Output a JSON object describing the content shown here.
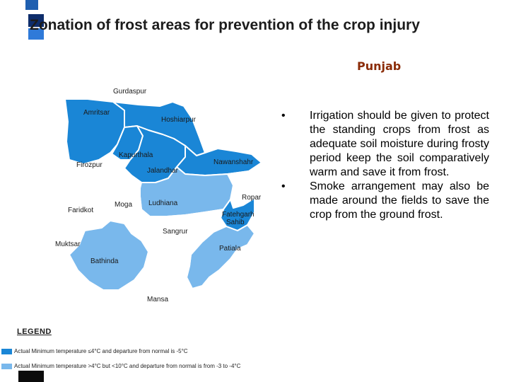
{
  "title": "Zonation of frost areas for prevention of the crop injury",
  "subtitle": "Punjab",
  "bullets": [
    "Irrigation should be given to protect the standing crops from frost as adequate soil moisture during frosty period keep the soil comparatively warm and save it from frost.",
    "Smoke arrangement may also be made around the fields to save the crop from the ground frost."
  ],
  "bullet_marker": "•",
  "colors": {
    "zone_severe": "#1a86d6",
    "zone_moderate": "#79b8ec",
    "zone_normal": "#ffffff",
    "border": "#8c8c8c",
    "subtitle": "#8b2c08"
  },
  "map": {
    "districts": [
      {
        "id": "gurdaspur",
        "label": "Gurdaspur",
        "zone": "normal"
      },
      {
        "id": "amritsar",
        "label": "Amritsar",
        "zone": "severe"
      },
      {
        "id": "hoshiarpur",
        "label": "Hoshiarpur",
        "zone": "severe"
      },
      {
        "id": "kapurthala",
        "label": "Kapurthala",
        "zone": "severe"
      },
      {
        "id": "jalandhar",
        "label": "Jalandhar",
        "zone": "severe"
      },
      {
        "id": "nawanshahr",
        "label": "Nawanshahr",
        "zone": "severe"
      },
      {
        "id": "firozpur",
        "label": "Firozpur",
        "zone": "normal"
      },
      {
        "id": "ropar",
        "label": "Ropar",
        "zone": "normal"
      },
      {
        "id": "ludhiana",
        "label": "Ludhiana",
        "zone": "moderate"
      },
      {
        "id": "moga",
        "label": "Moga",
        "zone": "normal"
      },
      {
        "id": "faridkot",
        "label": "Faridkot",
        "zone": "normal"
      },
      {
        "id": "fatehgarh",
        "label": "Fatehgarh Sahib",
        "zone": "severe"
      },
      {
        "id": "sangrur",
        "label": "Sangrur",
        "zone": "normal"
      },
      {
        "id": "muktsar",
        "label": "Muktsar",
        "zone": "normal"
      },
      {
        "id": "bathinda",
        "label": "Bathinda",
        "zone": "moderate"
      },
      {
        "id": "patiala",
        "label": "Patiala",
        "zone": "moderate"
      },
      {
        "id": "mansa",
        "label": "Mansa",
        "zone": "normal"
      }
    ]
  },
  "legend": {
    "title": "LEGEND",
    "items": [
      {
        "zone": "severe",
        "text": "Actual Minimum temperature ≤4°C and departure from normal is -5°C"
      },
      {
        "zone": "moderate",
        "text": "Actual Minimum temperature >4°C but <10°C and departure from normal is from -3 to -4°C"
      }
    ]
  }
}
